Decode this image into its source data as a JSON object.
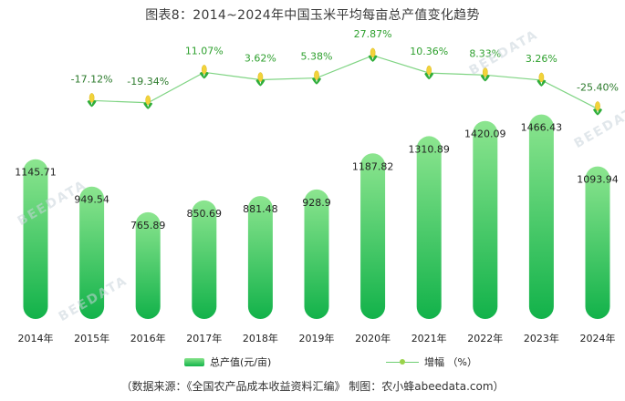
{
  "chart_data": {
    "type": "bar",
    "title": "图表8：2014~2024年中国玉米平均每亩总产值变化趋势",
    "categories": [
      "2014年",
      "2015年",
      "2016年",
      "2017年",
      "2018年",
      "2019年",
      "2020年",
      "2021年",
      "2022年",
      "2023年",
      "2024年"
    ],
    "series": [
      {
        "name": "总产值(元/亩)",
        "type": "bar",
        "values": [
          1145.71,
          949.54,
          765.89,
          850.69,
          881.48,
          928.9,
          1187.82,
          1310.89,
          1420.09,
          1466.43,
          1093.94
        ],
        "labels": [
          "1145.71",
          "949.54",
          "765.89",
          "850.69",
          "881.48",
          "928.9",
          "1187.82",
          "1310.89",
          "1420.09",
          "1466.43",
          "1093.94"
        ]
      },
      {
        "name": "增幅 （%）",
        "type": "line",
        "values": [
          null,
          -17.12,
          -19.34,
          11.07,
          3.62,
          5.38,
          27.87,
          10.36,
          8.33,
          3.26,
          -25.4
        ],
        "labels": [
          "",
          "-17.12%",
          "-19.34%",
          "11.07%",
          "3.62%",
          "5.38%",
          "27.87%",
          "10.36%",
          "8.33%",
          "3.26%",
          "-25.40%"
        ]
      }
    ],
    "colors": {
      "bar_top": "#86e38a",
      "bar_bottom": "#12b24a",
      "line": "#7fd483",
      "pos_label": "#2ea02e",
      "neg_label": "#2b7a2b"
    }
  },
  "source": "（数据来源：《全国农产品成本收益资料汇编》     制图：农小蜂abeedata.com）",
  "watermark": "BEEDATA"
}
